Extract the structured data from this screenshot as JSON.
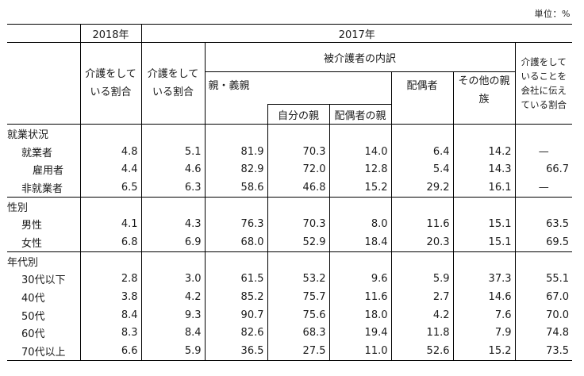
{
  "unit": "単位：%",
  "headers": {
    "y2018": "2018年",
    "y2017": "2017年",
    "care_rate_2018": "介護をしている割合",
    "care_rate_2017": "介護をしている割合",
    "care_recipient": "被介護者の内訳",
    "parents": "親・義親",
    "own_parent": "自分の親",
    "spouse_parent": "配偶者の親",
    "spouse": "配偶者",
    "other_relative": "その他の親族",
    "told_company": "介護をしていることを会社に伝えている割合"
  },
  "groups": {
    "employment": "就業状況",
    "gender": "性別",
    "age": "年代別"
  },
  "rows": {
    "employed": {
      "label": "就業者",
      "c1": "4.8",
      "c2": "5.1",
      "c3": "81.9",
      "c4": "70.3",
      "c5": "14.0",
      "c6": "6.4",
      "c7": "14.2",
      "c8": "—"
    },
    "employee": {
      "label": "雇用者",
      "c1": "4.4",
      "c2": "4.6",
      "c3": "82.9",
      "c4": "72.0",
      "c5": "12.8",
      "c6": "5.4",
      "c7": "14.3",
      "c8": "66.7"
    },
    "unemployed": {
      "label": "非就業者",
      "c1": "6.5",
      "c2": "6.3",
      "c3": "58.6",
      "c4": "46.8",
      "c5": "15.2",
      "c6": "29.2",
      "c7": "16.1",
      "c8": "—"
    },
    "male": {
      "label": "男性",
      "c1": "4.1",
      "c2": "4.3",
      "c3": "76.3",
      "c4": "70.3",
      "c5": "8.0",
      "c6": "11.6",
      "c7": "15.1",
      "c8": "63.5"
    },
    "female": {
      "label": "女性",
      "c1": "6.8",
      "c2": "6.9",
      "c3": "68.0",
      "c4": "52.9",
      "c5": "18.4",
      "c6": "20.3",
      "c7": "15.1",
      "c8": "69.5"
    },
    "age30": {
      "label": "30代以下",
      "c1": "2.8",
      "c2": "3.0",
      "c3": "61.5",
      "c4": "53.2",
      "c5": "9.6",
      "c6": "5.9",
      "c7": "37.3",
      "c8": "55.1"
    },
    "age40": {
      "label": "40代",
      "c1": "3.8",
      "c2": "4.2",
      "c3": "85.2",
      "c4": "75.7",
      "c5": "11.6",
      "c6": "2.7",
      "c7": "14.6",
      "c8": "67.0"
    },
    "age50": {
      "label": "50代",
      "c1": "8.4",
      "c2": "9.3",
      "c3": "90.7",
      "c4": "75.6",
      "c5": "18.0",
      "c6": "4.2",
      "c7": "7.6",
      "c8": "70.0"
    },
    "age60": {
      "label": "60代",
      "c1": "8.3",
      "c2": "8.4",
      "c3": "82.6",
      "c4": "68.3",
      "c5": "19.4",
      "c6": "11.8",
      "c7": "7.9",
      "c8": "74.8"
    },
    "age70": {
      "label": "70代以上",
      "c1": "6.6",
      "c2": "5.9",
      "c3": "36.5",
      "c4": "27.5",
      "c5": "11.0",
      "c6": "52.6",
      "c7": "15.2",
      "c8": "73.5"
    }
  }
}
